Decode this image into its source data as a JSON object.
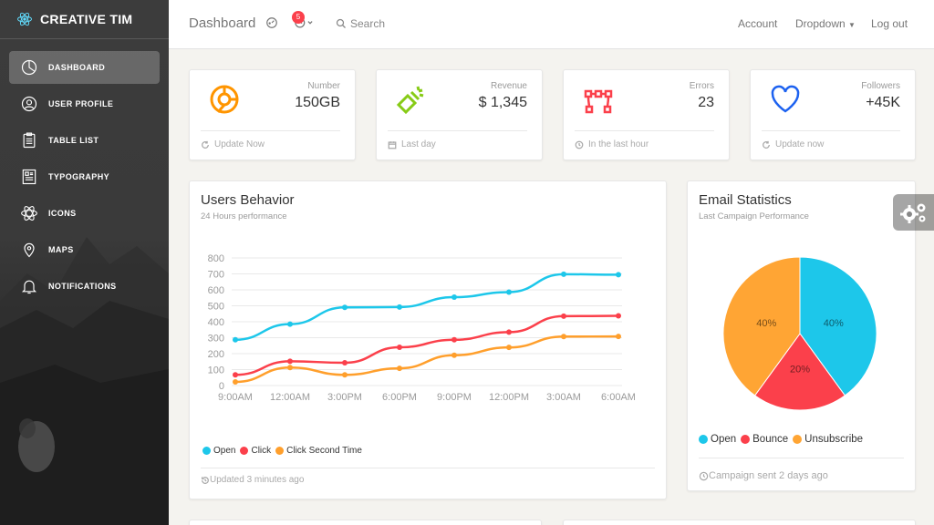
{
  "sidebar": {
    "brand": "CREATIVE TIM",
    "items": [
      {
        "label": "DASHBOARD",
        "icon": "pie-chart-icon",
        "active": true
      },
      {
        "label": "USER PROFILE",
        "icon": "user-icon",
        "active": false
      },
      {
        "label": "TABLE LIST",
        "icon": "clipboard-icon",
        "active": false
      },
      {
        "label": "TYPOGRAPHY",
        "icon": "newspaper-icon",
        "active": false
      },
      {
        "label": "ICONS",
        "icon": "atom-icon",
        "active": false
      },
      {
        "label": "MAPS",
        "icon": "map-pin-icon",
        "active": false
      },
      {
        "label": "NOTIFICATIONS",
        "icon": "bell-icon",
        "active": false
      }
    ]
  },
  "navbar": {
    "title": "Dashboard",
    "notifications_count": "5",
    "search_label": "Search",
    "account": "Account",
    "dropdown": "Dropdown",
    "logout": "Log out"
  },
  "stats": [
    {
      "label": "Number",
      "value": "150GB",
      "footer": "Update Now",
      "icon": "chart-circle-icon",
      "color": "#ff9500",
      "footer_icon": "refresh-icon"
    },
    {
      "label": "Revenue",
      "value": "$ 1,345",
      "footer": "Last day",
      "icon": "light-bulb-icon",
      "color": "#87cb16",
      "footer_icon": "calendar-icon"
    },
    {
      "label": "Errors",
      "value": "23",
      "footer": "In the last hour",
      "icon": "vector-icon",
      "color": "#fb404b",
      "footer_icon": "clock-icon"
    },
    {
      "label": "Followers",
      "value": "+45K",
      "footer": "Update now",
      "icon": "heart-icon",
      "color": "#1d62f0",
      "footer_icon": "refresh-icon"
    }
  ],
  "users_behavior": {
    "title": "Users Behavior",
    "subtitle": "24 Hours performance",
    "footer": "Updated 3 minutes ago"
  },
  "email_stats": {
    "title": "Email Statistics",
    "subtitle": "Last Campaign Performance",
    "footer": "Campaign sent 2 days ago"
  },
  "chart_data": [
    {
      "type": "line",
      "categories": [
        "9:00AM",
        "12:00AM",
        "3:00PM",
        "6:00PM",
        "9:00PM",
        "12:00PM",
        "3:00AM",
        "6:00AM"
      ],
      "series": [
        {
          "name": "Open",
          "color": "#1dc7ea",
          "values": [
            287,
            385,
            490,
            492,
            554,
            586,
            698,
            695
          ]
        },
        {
          "name": "Click",
          "color": "#fb404b",
          "values": [
            67,
            152,
            143,
            240,
            287,
            335,
            435,
            437
          ]
        },
        {
          "name": "Click Second Time",
          "color": "#ff9f2c",
          "values": [
            23,
            113,
            67,
            108,
            190,
            239,
            307,
            308
          ]
        }
      ],
      "yticks": [
        0,
        100,
        200,
        300,
        400,
        500,
        600,
        700,
        800
      ],
      "ylim": [
        0,
        800
      ],
      "grid": true,
      "legend": "bottom-left"
    },
    {
      "type": "pie",
      "labels": [
        "Open",
        "Bounce",
        "Unsubscribe"
      ],
      "values": [
        40,
        20,
        40
      ],
      "value_labels": [
        "40%",
        "20%",
        "40%"
      ],
      "colors": [
        "#1dc7ea",
        "#fb404b",
        "#ffa534"
      ],
      "legend": "bottom"
    }
  ]
}
